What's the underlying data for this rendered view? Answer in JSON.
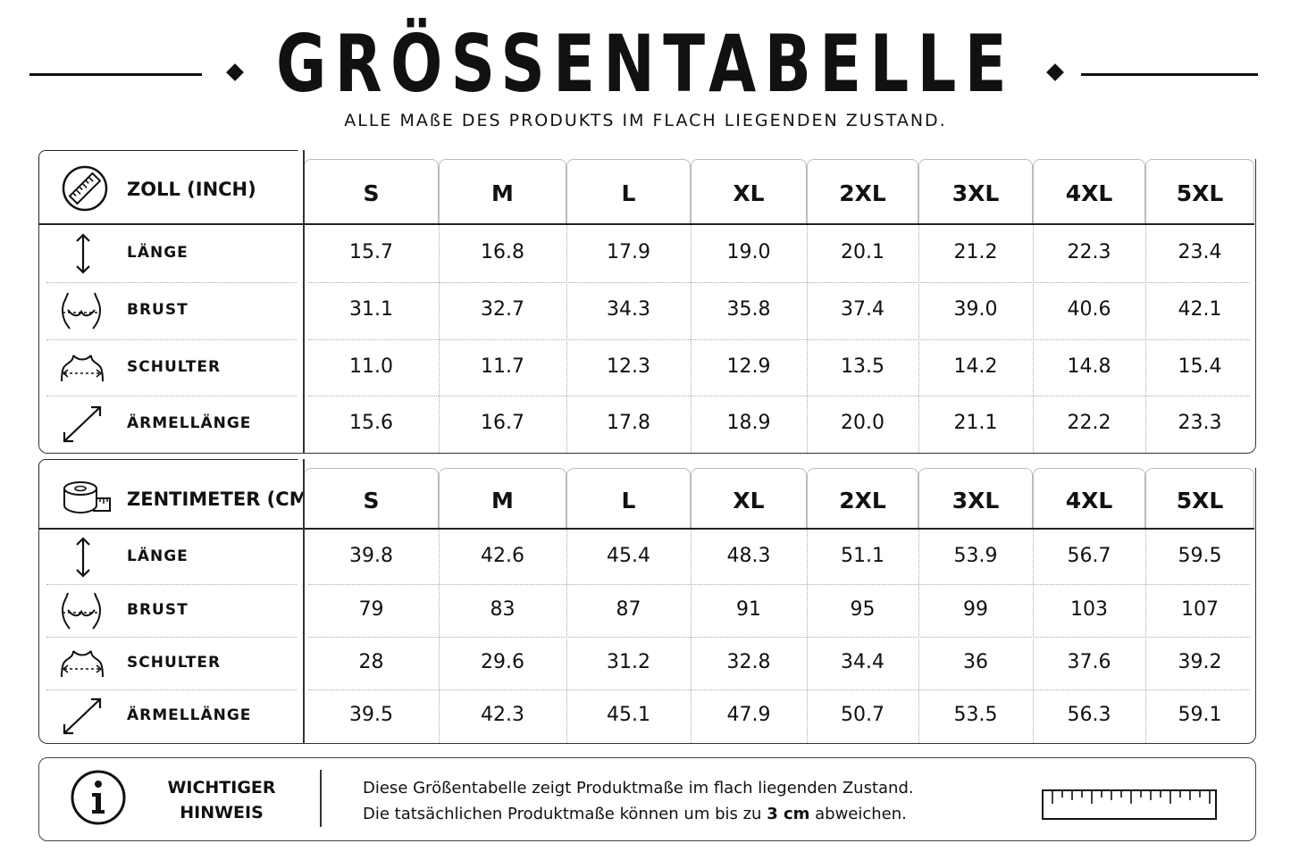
{
  "title": "GRÖSSENTABELLE",
  "subtitle": "ALLE MAßE DES PRODUKTS IM FLACH LIEGENDEN ZUSTAND.",
  "sizes": [
    "S",
    "M",
    "L",
    "XL",
    "2XL",
    "3XL",
    "4XL",
    "5XL"
  ],
  "inch_table": {
    "unit_label": "ZOLL (INCH)",
    "rows": [
      {
        "label": "LÄNGE",
        "icon": "length-arrow-icon",
        "values": [
          "15.7",
          "16.8",
          "17.9",
          "19.0",
          "20.1",
          "21.2",
          "22.3",
          "23.4"
        ]
      },
      {
        "label": "BRUST",
        "icon": "chest-icon",
        "values": [
          "31.1",
          "32.7",
          "34.3",
          "35.8",
          "37.4",
          "39.0",
          "40.6",
          "42.1"
        ]
      },
      {
        "label": "SCHULTER",
        "icon": "shoulder-icon",
        "values": [
          "11.0",
          "11.7",
          "12.3",
          "12.9",
          "13.5",
          "14.2",
          "14.8",
          "15.4"
        ]
      },
      {
        "label": "ÄRMELLÄNGE",
        "icon": "sleeve-arrow-icon",
        "values": [
          "15.6",
          "16.7",
          "17.8",
          "18.9",
          "20.0",
          "21.1",
          "22.2",
          "23.3"
        ]
      }
    ]
  },
  "cm_table": {
    "unit_label": "ZENTIMETER (CM)",
    "rows": [
      {
        "label": "LÄNGE",
        "icon": "length-arrow-icon",
        "values": [
          "39.8",
          "42.6",
          "45.4",
          "48.3",
          "51.1",
          "53.9",
          "56.7",
          "59.5"
        ]
      },
      {
        "label": "BRUST",
        "icon": "chest-icon",
        "values": [
          "79",
          "83",
          "87",
          "91",
          "95",
          "99",
          "103",
          "107"
        ]
      },
      {
        "label": "SCHULTER",
        "icon": "shoulder-icon",
        "values": [
          "28",
          "29.6",
          "31.2",
          "32.8",
          "34.4",
          "36",
          "37.6",
          "39.2"
        ]
      },
      {
        "label": "ÄRMELLÄNGE",
        "icon": "sleeve-arrow-icon",
        "values": [
          "39.5",
          "42.3",
          "45.1",
          "47.9",
          "50.7",
          "53.5",
          "56.3",
          "59.1"
        ]
      }
    ]
  },
  "note": {
    "title_line1": "WICHTIGER",
    "title_line2": "HINWEIS",
    "text_line1": "Diese Größentabelle zeigt Produktmaße im flach liegenden Zustand.",
    "text_line2_before": "Die tatsächlichen Produktmaße können um bis zu ",
    "text_line2_bold": "3 cm",
    "text_line2_after": " abweichen.",
    "info_icon_text": "i"
  }
}
